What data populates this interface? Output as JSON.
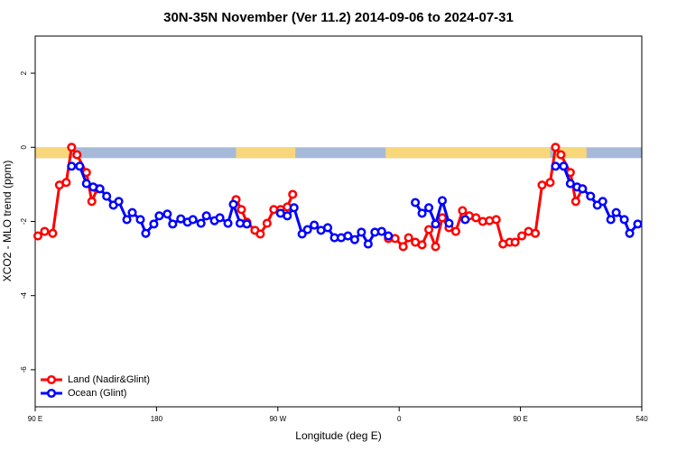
{
  "chart_data": {
    "type": "line",
    "title": "30N-35N November (Ver 11.2)   2014-09-06 to 2024-07-31",
    "x_label": "Longitude (deg E)",
    "y_label": "XCO2 - MLO trend (ppm)",
    "xlim": [
      90,
      540
    ],
    "ylim": [
      -7,
      3
    ],
    "xticks": [
      {
        "value": 90,
        "label": "90 E"
      },
      180,
      {
        "value": 270,
        "label": "90 W"
      },
      {
        "value": 360,
        "label": "0"
      },
      {
        "value": 450,
        "label": "90 E"
      },
      540
    ],
    "yticks": [
      -6,
      -4,
      -2,
      0,
      2
    ],
    "legend": "bottom-left",
    "surface_band": {
      "land_color": "#f7d77a",
      "ocean_color": "#a7b9d9",
      "land_ranges": [
        [
          90,
          116
        ],
        [
          239,
          283
        ],
        [
          350,
          472
        ],
        [
          476,
          499
        ]
      ]
    },
    "series": [
      {
        "name": "Land (Nadir&Glint)",
        "color": "#ff0000",
        "x": [
          92,
          97,
          103,
          108,
          113,
          117,
          121,
          128,
          132,
          136,
          190,
          239,
          243,
          247,
          253,
          257,
          262,
          267,
          272,
          277,
          281,
          316,
          352,
          357,
          363,
          367,
          372,
          377,
          382,
          387,
          392,
          397,
          402,
          407,
          412,
          417,
          422,
          427,
          432,
          437,
          442,
          446,
          451,
          456,
          461,
          466,
          472,
          476,
          480,
          487,
          491,
          496
        ],
        "values": [
          -2.39,
          -2.27,
          -2.32,
          -1.02,
          -0.95,
          0,
          -0.2,
          -0.68,
          -1.46,
          -1.12,
          null,
          -1.41,
          -1.68,
          -2.02,
          -2.24,
          -2.34,
          -2.05,
          -1.68,
          -1.68,
          -1.61,
          -1.27,
          null,
          -2.46,
          -2.46,
          -2.68,
          -2.44,
          -2.56,
          -2.63,
          -2.22,
          -2.68,
          -1.9,
          -2.17,
          -2.27,
          -1.71,
          -1.85,
          -1.9,
          -2.0,
          -1.98,
          -1.95,
          -2.61,
          -2.56,
          -2.56,
          -2.39,
          -2.27,
          -2.32,
          -1.02,
          -0.95,
          0,
          -0.2,
          -0.68,
          -1.46,
          -1.12
        ]
      },
      {
        "name": "Ocean (Glint)",
        "color": "#0000ff",
        "x": [
          117,
          123,
          128,
          133,
          138,
          143,
          148,
          152,
          158,
          162,
          168,
          172,
          178,
          182,
          188,
          192,
          198,
          203,
          207,
          213,
          217,
          223,
          227,
          233,
          237,
          242,
          247,
          260,
          272,
          277,
          282,
          288,
          292,
          297,
          302,
          307,
          312,
          317,
          322,
          327,
          332,
          337,
          342,
          347,
          352,
          362,
          372,
          377,
          382,
          387,
          392,
          397,
          403,
          409,
          450,
          476,
          482,
          487,
          492,
          496,
          502,
          507,
          511,
          517,
          521,
          527,
          531,
          537
        ],
        "values": [
          -0.51,
          -0.51,
          -0.98,
          -1.07,
          -1.12,
          -1.32,
          -1.56,
          -1.46,
          -1.95,
          -1.76,
          -1.95,
          -2.32,
          -2.07,
          -1.85,
          -1.8,
          -2.07,
          -1.93,
          -2.02,
          -1.95,
          -2.05,
          -1.85,
          -1.98,
          -1.9,
          -2.05,
          -1.54,
          -2.05,
          -2.07,
          null,
          -1.78,
          -1.85,
          -1.63,
          -2.34,
          -2.22,
          -2.1,
          -2.24,
          -2.17,
          -2.44,
          -2.44,
          -2.39,
          -2.49,
          -2.29,
          -2.61,
          -2.29,
          -2.27,
          -2.39,
          null,
          -1.49,
          -1.78,
          -1.63,
          -2.07,
          -1.44,
          -2.05,
          null,
          -1.95,
          null,
          -0.51,
          -0.51,
          -0.98,
          -1.07,
          -1.12,
          -1.32,
          -1.56,
          -1.46,
          -1.95,
          -1.76,
          -1.95,
          -2.32,
          -2.07
        ]
      }
    ]
  }
}
